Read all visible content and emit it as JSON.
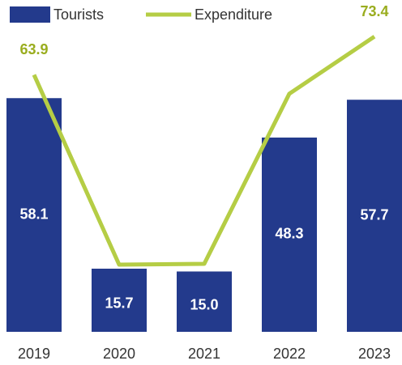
{
  "chart_data": {
    "type": "bar_line",
    "categories": [
      "2019",
      "2020",
      "2021",
      "2022",
      "2023"
    ],
    "series": [
      {
        "name": "Tourists",
        "type": "bar",
        "color": "#233a8c",
        "values": [
          58.1,
          15.7,
          15.0,
          48.3,
          57.7
        ],
        "value_labels": [
          "58.1",
          "15.7",
          "15.0",
          "48.3",
          "57.7"
        ]
      },
      {
        "name": "Expenditure",
        "type": "line",
        "color": "#b5cd45",
        "values": [
          63.9,
          16.7,
          16.9,
          59.2,
          73.4
        ],
        "value_labels": [
          "63.9",
          null,
          null,
          null,
          "73.4"
        ]
      }
    ],
    "ylim": [
      0,
      82.5
    ],
    "legend": "top-left"
  }
}
